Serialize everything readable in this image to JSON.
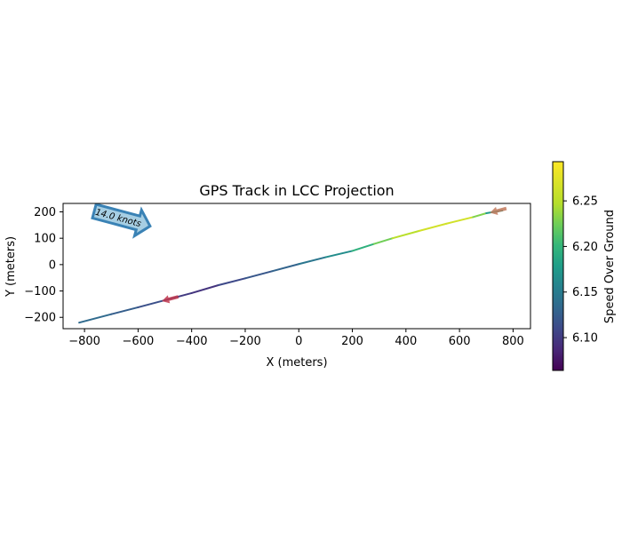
{
  "chart_data": {
    "type": "line",
    "title": "GPS Track in LCC Projection",
    "xlabel": "X (meters)",
    "ylabel": "Y (meters)",
    "xlim": [
      -880,
      865
    ],
    "ylim": [
      -243,
      232
    ],
    "xticks": [
      -800,
      -600,
      -400,
      -200,
      0,
      200,
      400,
      600,
      800
    ],
    "yticks": [
      -200,
      -100,
      0,
      100,
      200
    ],
    "grid": false,
    "colorbar": {
      "label": "Speed Over Ground",
      "colormap": "viridis",
      "range": [
        6.064,
        6.293
      ],
      "ticks": [
        6.1,
        6.15,
        6.2,
        6.25
      ]
    },
    "track": {
      "x": [
        -820,
        -700,
        -600,
        -500,
        -400,
        -300,
        -200,
        -100,
        0,
        100,
        200,
        280,
        350,
        450,
        550,
        650,
        700,
        760
      ],
      "y": [
        -220,
        -188,
        -162,
        -135,
        -108,
        -78,
        -52,
        -25,
        2,
        28,
        52,
        78,
        100,
        128,
        155,
        180,
        195,
        205
      ],
      "speed": [
        6.14,
        6.13,
        6.12,
        6.11,
        6.09,
        6.1,
        6.12,
        6.12,
        6.14,
        6.15,
        6.18,
        6.21,
        6.24,
        6.26,
        6.27,
        6.26,
        6.2,
        6.15
      ]
    },
    "annotations": [
      {
        "text": "14.0 knots",
        "type": "direction-arrow",
        "direction": "east-southeast"
      }
    ],
    "markers": [
      {
        "name": "start-marker",
        "x": -480,
        "y": -130,
        "color": "#c0384e"
      },
      {
        "name": "end-marker",
        "x": 745,
        "y": 205,
        "color": "#c27a5c"
      }
    ]
  }
}
